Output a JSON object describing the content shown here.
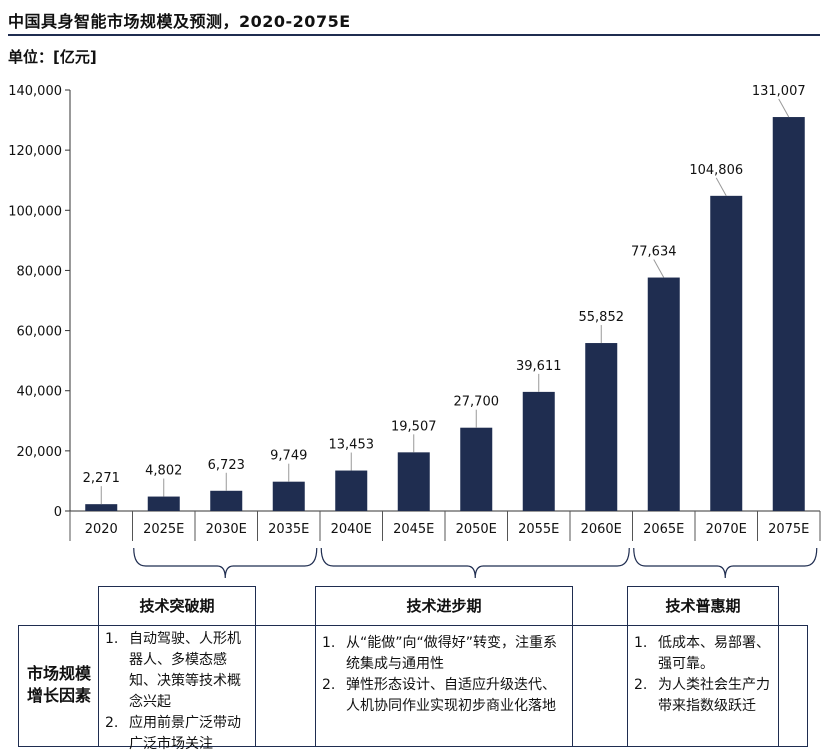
{
  "title": "中国具身智能市场规模及预测，2020-2075E",
  "unit": "单位：[亿元]",
  "colors": {
    "bar": "#1f2d50",
    "accent": "#1f2d50"
  },
  "chart_data": {
    "type": "bar",
    "categories": [
      "2020",
      "2025E",
      "2030E",
      "2035E",
      "2040E",
      "2045E",
      "2050E",
      "2055E",
      "2060E",
      "2065E",
      "2070E",
      "2075E"
    ],
    "values": [
      2271,
      4802,
      6723,
      9749,
      13453,
      19507,
      27700,
      39611,
      55852,
      77634,
      104806,
      131007
    ],
    "value_labels": [
      "2,271",
      "4,802",
      "6,723",
      "9,749",
      "13,453",
      "19,507",
      "27,700",
      "39,611",
      "55,852",
      "77,634",
      "104,806",
      "131,007"
    ],
    "ylim": [
      0,
      140000
    ],
    "yticks": [
      0,
      20000,
      40000,
      60000,
      80000,
      100000,
      120000,
      140000
    ],
    "ytick_labels": [
      "0",
      "20,000",
      "40,000",
      "60,000",
      "80,000",
      "100,000",
      "120,000",
      "140,000"
    ],
    "grid": false,
    "legend": "none"
  },
  "phases": [
    {
      "title": "技术突破期",
      "items": [
        {
          "num": "1.",
          "text": "自动驾驶、人形机器人、多模态感知、决策等技术概念兴起"
        },
        {
          "num": "2.",
          "text": "应用前景广泛带动广泛市场关注"
        }
      ]
    },
    {
      "title": "技术进步期",
      "items": [
        {
          "num": "1.",
          "text": "从“能做”向“做得好”转变，注重系统集成与通用性"
        },
        {
          "num": "2.",
          "text": "弹性形态设计、自适应升级迭代、人机协同作业实现初步商业化落地"
        }
      ]
    },
    {
      "title": "技术普惠期",
      "items": [
        {
          "num": "1.",
          "text": "低成本、易部署、强可靠。"
        },
        {
          "num": "2.",
          "text": "为人类社会生产力带来指数级跃迁"
        }
      ]
    }
  ],
  "factor_label": "市场规模增长因素"
}
